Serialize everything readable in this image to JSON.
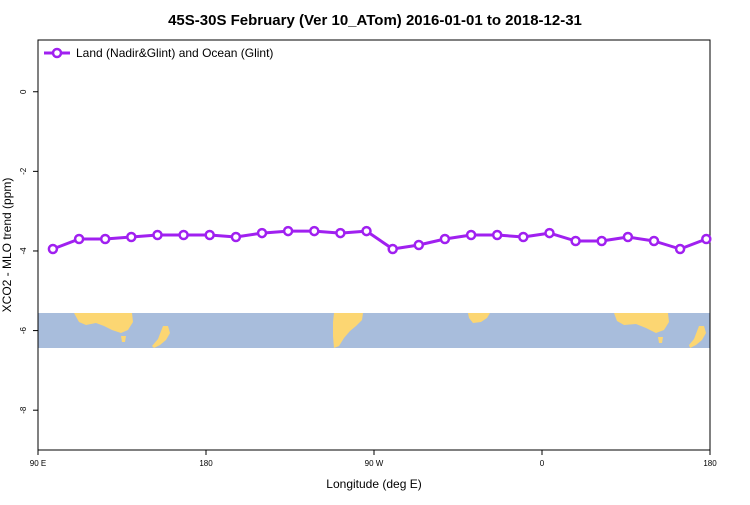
{
  "chart_data": {
    "type": "line",
    "title": "45S-30S February (Ver 10_ATom)   2016-01-01 to 2018-12-31",
    "xlabel": "Longitude (deg E)",
    "ylabel": "XCO2 - MLO trend (ppm)",
    "xlim": [
      90,
      450
    ],
    "ylim": [
      -9.0,
      1.3
    ],
    "x_ticks": [
      {
        "value": 90,
        "label": "90 E"
      },
      {
        "value": 180,
        "label": "180"
      },
      {
        "value": 270,
        "label": "90 W"
      },
      {
        "value": 360,
        "label": "0"
      },
      {
        "value": 450,
        "label": "180"
      }
    ],
    "y_ticks": [
      {
        "value": 0,
        "label": "0"
      },
      {
        "value": -2,
        "label": "-2"
      },
      {
        "value": -4,
        "label": "-4"
      },
      {
        "value": -6,
        "label": "-6"
      },
      {
        "value": -8,
        "label": "-8"
      }
    ],
    "grid": false,
    "legend_position": "top-left",
    "series": [
      {
        "name": "Land (Nadir&Glint) and Ocean (Glint)",
        "color": "#a020f0",
        "x": [
          98,
          112,
          126,
          140,
          154,
          168,
          182,
          196,
          210,
          224,
          238,
          252,
          266,
          280,
          294,
          308,
          322,
          336,
          350,
          364,
          378,
          392,
          406,
          420,
          434,
          448
        ],
        "y": [
          -3.95,
          -3.7,
          -3.7,
          -3.65,
          -3.6,
          -3.6,
          -3.6,
          -3.65,
          -3.55,
          -3.5,
          -3.5,
          -3.55,
          -3.5,
          -3.95,
          -3.85,
          -3.7,
          -3.6,
          -3.6,
          -3.65,
          -3.55,
          -3.75,
          -3.75,
          -3.65,
          -3.75,
          -3.95,
          -3.7
        ]
      }
    ],
    "inset_map": {
      "description_colors": {
        "ocean": "#a8bddc",
        "land": "#fcd672"
      },
      "lat_range": [
        -45,
        -30
      ]
    }
  }
}
